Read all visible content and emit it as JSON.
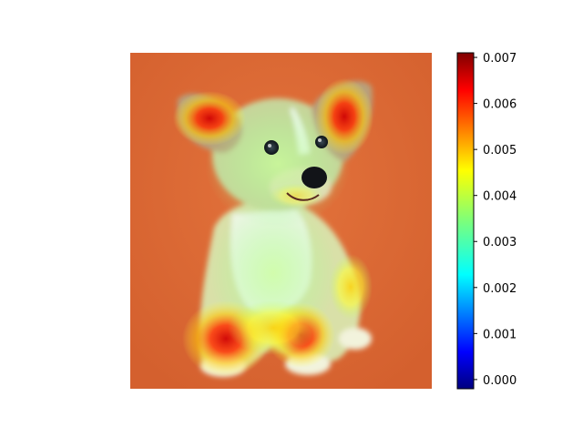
{
  "chart_data": {
    "type": "heatmap",
    "title": "",
    "xlabel": "",
    "ylabel": "",
    "description_overlay": "saliency heatmap overlaid on photo of a puppy on orange background",
    "colormap": "jet",
    "colorbar": {
      "vmin": -0.0002,
      "vmax": 0.0071,
      "ticks": [
        0.0,
        0.001,
        0.002,
        0.003,
        0.004,
        0.005,
        0.006,
        0.007
      ],
      "tick_labels": [
        "0.000",
        "0.001",
        "0.002",
        "0.003",
        "0.004",
        "0.005",
        "0.006",
        "0.007"
      ]
    },
    "hotspots": [
      {
        "region": "left ear",
        "value": 0.0065
      },
      {
        "region": "right ear",
        "value": 0.0062
      },
      {
        "region": "left front paw",
        "value": 0.0068
      },
      {
        "region": "right front paw",
        "value": 0.006
      },
      {
        "region": "right hind leg",
        "value": 0.0055
      }
    ]
  }
}
